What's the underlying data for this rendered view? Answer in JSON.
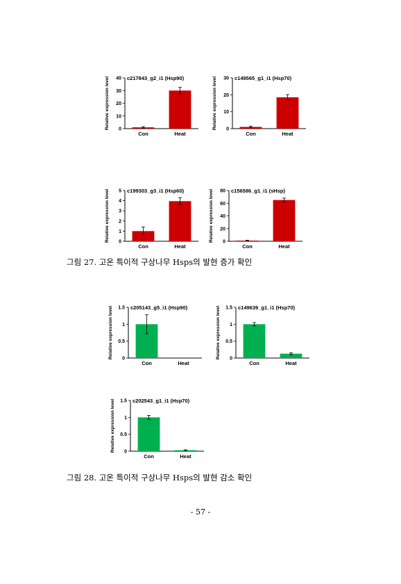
{
  "chart_data": [
    {
      "type": "bar",
      "title": "c217843_g2_i1 (Hsp90)",
      "ylabel": "Relative expression level",
      "categories": [
        "Con",
        "Heat"
      ],
      "values": [
        1,
        30
      ],
      "errors": [
        0.6,
        2.5
      ],
      "ylim": [
        0,
        40
      ],
      "yticks": [
        0,
        10,
        20,
        30,
        40
      ],
      "ytick_labels": [
        "0",
        "10",
        "20",
        "30",
        "40"
      ],
      "color": "#cc0000"
    },
    {
      "type": "bar",
      "title": "c149565_g1_i1 (Hsp70)",
      "ylabel": "Relative expression level",
      "categories": [
        "Con",
        "Heat"
      ],
      "values": [
        1,
        18.5
      ],
      "errors": [
        0.4,
        1.6
      ],
      "ylim": [
        0,
        30
      ],
      "yticks": [
        0,
        10,
        20,
        30
      ],
      "ytick_labels": [
        "0",
        "10",
        "20",
        "30"
      ],
      "color": "#cc0000"
    },
    {
      "type": "bar",
      "title": "c199303_g3_i1 (Hsp60)",
      "ylabel": "Relative expression level",
      "categories": [
        "Con",
        "Heat"
      ],
      "values": [
        1,
        3.95
      ],
      "errors": [
        0.4,
        0.35
      ],
      "ylim": [
        0,
        5
      ],
      "yticks": [
        0,
        1,
        2,
        3,
        4,
        5
      ],
      "ytick_labels": [
        "0",
        "1",
        "2",
        "3",
        "4",
        "5"
      ],
      "color": "#cc0000"
    },
    {
      "type": "bar",
      "title": "c156586_g1_i1 (sHsp)",
      "ylabel": "Relative expression level",
      "categories": [
        "Con",
        "Heat"
      ],
      "values": [
        1,
        65
      ],
      "errors": [
        0.6,
        3
      ],
      "ylim": [
        0,
        80
      ],
      "yticks": [
        0,
        20,
        40,
        60,
        80
      ],
      "ytick_labels": [
        "0",
        "20",
        "40",
        "60",
        "80"
      ],
      "color": "#cc0000"
    },
    {
      "type": "bar",
      "title": "c205143_g5_i1 (Hsp90)",
      "ylabel": "Relative expression level",
      "categories": [
        "Con",
        "Heat"
      ],
      "values": [
        1,
        0
      ],
      "errors": [
        0.28,
        0
      ],
      "ylim": [
        0,
        1.5
      ],
      "yticks": [
        0,
        0.5,
        1,
        1.5
      ],
      "ytick_labels": [
        "0",
        "0.5",
        "1",
        "1.5"
      ],
      "color": "#00b050"
    },
    {
      "type": "bar",
      "title": "c149639_g1_i1 (Hsp70)",
      "ylabel": "Relative expression level",
      "categories": [
        "Con",
        "Heat"
      ],
      "values": [
        1,
        0.13
      ],
      "errors": [
        0.05,
        0.03
      ],
      "ylim": [
        0,
        1.5
      ],
      "yticks": [
        0,
        0.5,
        1,
        1.5
      ],
      "ytick_labels": [
        "0",
        "0.5",
        "1",
        "1.5"
      ],
      "color": "#00b050"
    },
    {
      "type": "bar",
      "title": "c202543_g1_i1 (Hsp70)",
      "ylabel": "Relative expression level",
      "categories": [
        "Con",
        "Heat"
      ],
      "values": [
        1,
        0.03
      ],
      "errors": [
        0.06,
        0.01
      ],
      "ylim": [
        0,
        1.5
      ],
      "yticks": [
        0,
        0.5,
        1,
        1.5
      ],
      "ytick_labels": [
        "0",
        "0.5",
        "1",
        "1.5"
      ],
      "color": "#00b050"
    }
  ],
  "captions": {
    "fig27": "그림 27. 고온 특이적 구상나무 Hsps의 발현 증가 확인",
    "fig28": "그림 28. 고온 특이적 구상나무 Hsps의 발현 감소 확인"
  },
  "page_number": "- 57 -"
}
